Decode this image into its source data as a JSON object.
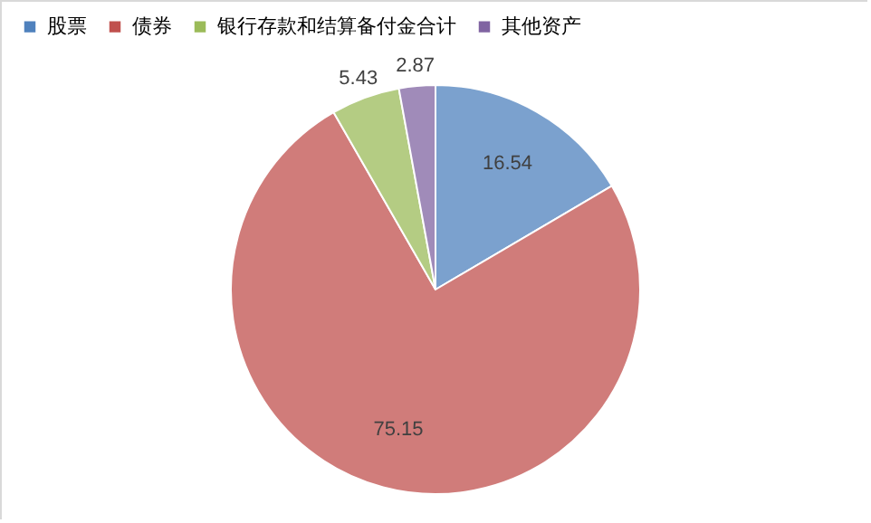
{
  "chart_data": {
    "type": "pie",
    "categories": [
      "股票",
      "债券",
      "银行存款和结算备付金合计",
      "其他资产"
    ],
    "values": [
      16.54,
      75.15,
      5.43,
      2.87
    ],
    "colors": [
      "#4f81bd",
      "#c0504d",
      "#9bbb59",
      "#8064a2"
    ],
    "data_labels": true,
    "legend": "top"
  }
}
